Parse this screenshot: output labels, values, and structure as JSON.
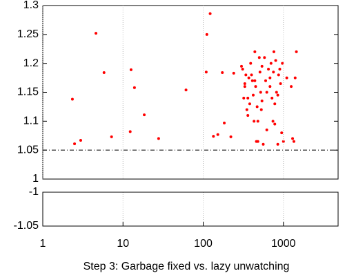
{
  "chart_data": [
    {
      "type": "scatter",
      "xscale": "log",
      "xlim": [
        1,
        4800
      ],
      "ylim": [
        1,
        1.3
      ],
      "yticks": [
        1,
        1.05,
        1.1,
        1.15,
        1.2,
        1.25,
        1.3
      ],
      "grid": true,
      "color": "#ff0000",
      "hlines": [
        {
          "value": 1.05,
          "color": "#000000",
          "dash": "6 3 1 3"
        },
        {
          "value": 1,
          "color": "#0000cc",
          "dash": "4 3"
        }
      ],
      "x": [
        2.34,
        2.49,
        2.97,
        4.6,
        5.8,
        7.2,
        12.6,
        13.9,
        12.3,
        18.4,
        27.8,
        61,
        109,
        111,
        122,
        134,
        152,
        183,
        173,
        221,
        240,
        300,
        310,
        320,
        330,
        340,
        350,
        360,
        370,
        380,
        390,
        400,
        410,
        420,
        430,
        440,
        450,
        460,
        470,
        480,
        500,
        510,
        520,
        530,
        540,
        560,
        580,
        600,
        620,
        650,
        680,
        700,
        720,
        740,
        750,
        760,
        780,
        800,
        820,
        850,
        870,
        900,
        920,
        950,
        970,
        1000,
        1100,
        1250,
        1300,
        1350,
        1400,
        1450,
        330,
        360,
        440,
        480,
        620,
        780,
        850,
        680,
        540
      ],
      "values": [
        1.138,
        1.061,
        1.067,
        1.252,
        1.184,
        1.073,
        1.189,
        1.158,
        1.082,
        1.111,
        1.07,
        1.154,
        1.185,
        1.25,
        1.286,
        1.074,
        1.077,
        1.097,
        1.184,
        1.073,
        1.183,
        1.195,
        1.19,
        1.14,
        1.165,
        1.18,
        1.12,
        1.11,
        1.175,
        1.13,
        1.2,
        1.18,
        1.17,
        1.145,
        1.1,
        1.22,
        1.16,
        1.065,
        1.125,
        1.065,
        1.21,
        1.185,
        1.15,
        1.12,
        1.135,
        1.06,
        1.21,
        1.17,
        1.085,
        1.19,
        1.16,
        1.2,
        1.14,
        1.1,
        1.185,
        1.22,
        1.095,
        1.205,
        1.15,
        1.06,
        1.18,
        1.19,
        1.165,
        1.08,
        1.2,
        1.065,
        1.175,
        1.16,
        1.07,
        1.065,
        1.175,
        1.22,
        1.16,
        1.14,
        1.17,
        1.1,
        1.15,
        1.13,
        1.145,
        1.175,
        1.195
      ]
    },
    {
      "type": "scatter",
      "xscale": "log",
      "xlim": [
        1,
        4800
      ],
      "ylim": [
        -1.05,
        -1
      ],
      "yticks": [
        -1.05,
        -1
      ],
      "xticks": [
        1,
        10,
        100,
        1000
      ],
      "grid": true,
      "color": "#ff0000",
      "xlabel": "Step 3: Garbage fixed vs. lazy unwatching",
      "hlines": [
        {
          "value": -1,
          "color": "#0000cc",
          "dash": "4 3"
        }
      ],
      "x": [],
      "values": []
    }
  ]
}
